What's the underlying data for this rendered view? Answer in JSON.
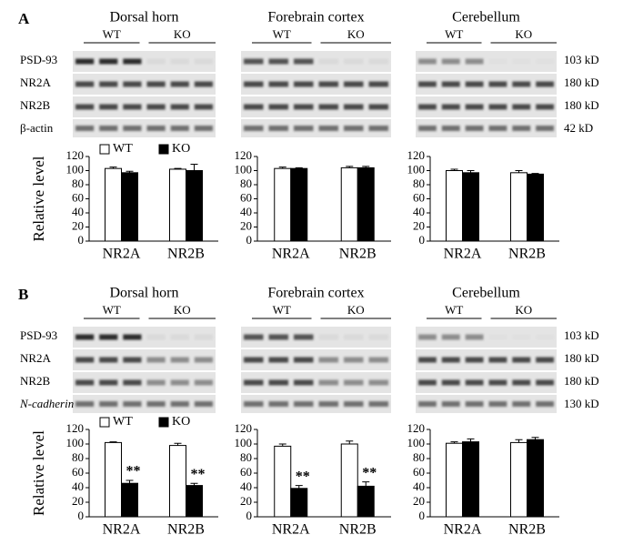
{
  "panels": [
    {
      "label": "A",
      "groups": [
        "Dorsal horn",
        "Forebrain cortex",
        "Cerebellum"
      ],
      "genotypes": [
        "WT",
        "KO"
      ],
      "rows": [
        "PSD-93",
        "NR2A",
        "NR2B",
        "β-actin"
      ],
      "sizes": [
        "103 kD",
        "180 kD",
        "180 kD",
        "42 kD"
      ]
    },
    {
      "label": "B",
      "groups": [
        "Dorsal horn",
        "Forebrain cortex",
        "Cerebellum"
      ],
      "genotypes": [
        "WT",
        "KO"
      ],
      "rows": [
        "PSD-93",
        "NR2A",
        "NR2B",
        "N-cadherin"
      ],
      "sizes": [
        "103 kD",
        "180 kD",
        "180 kD",
        "130 kD"
      ]
    }
  ],
  "chart_data": [
    {
      "type": "bar",
      "y_label": "Relative level",
      "categories": [
        "NR2A",
        "NR2B"
      ],
      "ylim": [
        0,
        120
      ],
      "yticks": [
        0,
        20,
        40,
        60,
        80,
        100,
        120
      ],
      "series": [
        {
          "name": "WT",
          "color": "#ffffff",
          "values": [
            103,
            102
          ],
          "errors": [
            2,
            1
          ]
        },
        {
          "name": "KO",
          "color": "#000000",
          "values": [
            97,
            100
          ],
          "errors": [
            2,
            9
          ]
        }
      ]
    },
    {
      "type": "bar",
      "categories": [
        "NR2A",
        "NR2B"
      ],
      "ylim": [
        0,
        120
      ],
      "yticks": [
        0,
        20,
        40,
        60,
        80,
        100,
        120
      ],
      "series": [
        {
          "color": "#ffffff",
          "values": [
            103,
            104
          ],
          "errors": [
            2,
            2
          ]
        },
        {
          "color": "#000000",
          "values": [
            103,
            104
          ],
          "errors": [
            1,
            2
          ]
        }
      ]
    },
    {
      "type": "bar",
      "categories": [
        "NR2A",
        "NR2B"
      ],
      "ylim": [
        0,
        120
      ],
      "yticks": [
        0,
        20,
        40,
        60,
        80,
        100,
        120
      ],
      "series": [
        {
          "color": "#ffffff",
          "values": [
            100,
            97
          ],
          "errors": [
            2,
            3
          ]
        },
        {
          "color": "#000000",
          "values": [
            97,
            95
          ],
          "errors": [
            3,
            1
          ]
        }
      ]
    },
    {
      "type": "bar",
      "y_label": "Relative level",
      "categories": [
        "NR2A",
        "NR2B"
      ],
      "ylim": [
        0,
        120
      ],
      "yticks": [
        0,
        20,
        40,
        60,
        80,
        100,
        120
      ],
      "series": [
        {
          "name": "WT",
          "color": "#ffffff",
          "values": [
            102,
            98
          ],
          "errors": [
            1,
            3
          ]
        },
        {
          "name": "KO",
          "color": "#000000",
          "values": [
            46,
            43
          ],
          "errors": [
            4,
            3
          ],
          "annotations": [
            "**",
            "**"
          ]
        }
      ]
    },
    {
      "type": "bar",
      "categories": [
        "NR2A",
        "NR2B"
      ],
      "ylim": [
        0,
        120
      ],
      "yticks": [
        0,
        20,
        40,
        60,
        80,
        100,
        120
      ],
      "series": [
        {
          "color": "#ffffff",
          "values": [
            97,
            100
          ],
          "errors": [
            3,
            4
          ]
        },
        {
          "color": "#000000",
          "values": [
            39,
            42
          ],
          "errors": [
            4,
            6
          ],
          "annotations": [
            "**",
            "**"
          ]
        }
      ]
    },
    {
      "type": "bar",
      "categories": [
        "NR2A",
        "NR2B"
      ],
      "ylim": [
        0,
        120
      ],
      "yticks": [
        0,
        20,
        40,
        60,
        80,
        100,
        120
      ],
      "series": [
        {
          "color": "#ffffff",
          "values": [
            101,
            102
          ],
          "errors": [
            2,
            4
          ]
        },
        {
          "color": "#000000",
          "values": [
            103,
            106
          ],
          "errors": [
            4,
            3
          ]
        }
      ]
    }
  ]
}
